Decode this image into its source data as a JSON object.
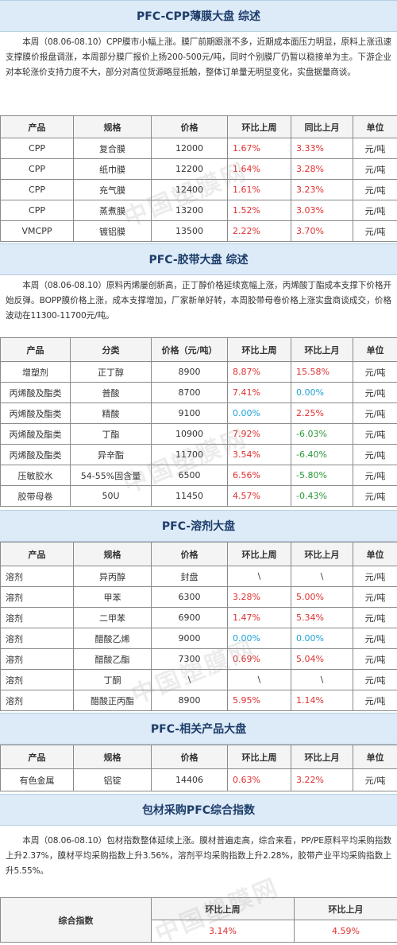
{
  "watermark": "中国塑膜网",
  "cpp": {
    "title": "PFC-CPP薄膜大盘 综述",
    "text": "本周（08.06-08.10）CPP膜市小幅上涨。膜厂前期跟涨不多，近期成本面压力明显，原料上涨迅速支撑膜价报盘调涨，本周部分膜厂报价上扬200-500元/吨，同时个别膜厂仍暂以稳接单为主。下游企业对本轮涨价支持力度不大，部分对高位货源略显抵触，整体订单量无明显变化，实盘据量商谈。",
    "headers": [
      "产品",
      "规格",
      "价格",
      "环比上周",
      "同比上月",
      "单位"
    ],
    "rows": [
      [
        "CPP",
        "复合膜",
        "12000",
        "1.67%",
        "3.33%",
        "元/吨"
      ],
      [
        "CPP",
        "纸巾膜",
        "12200",
        "1.64%",
        "3.28%",
        "元/吨"
      ],
      [
        "CPP",
        "充气膜",
        "12400",
        "1.61%",
        "3.23%",
        "元/吨"
      ],
      [
        "CPP",
        "蒸煮膜",
        "13200",
        "1.52%",
        "3.03%",
        "元/吨"
      ],
      [
        "VMCPP",
        "镀铝膜",
        "13500",
        "2.22%",
        "3.70%",
        "元/吨"
      ]
    ]
  },
  "tape": {
    "title": "PFC-胶带大盘 综述",
    "text": "本周（08.06-08.10）原料丙烯屡创新高，正丁醇价格延续宽幅上涨，丙烯酸丁酯成本支撑下价格开始反弹。BOPP膜价格上涨，成本支撑增加，厂家新单好转，本周胶带母卷价格上涨实盘商谈成交，价格波动在11300-11700元/吨。",
    "headers": [
      "产品",
      "分类",
      "价格（元/吨）",
      "环比上周",
      "环比上月",
      "单位"
    ],
    "rows": [
      [
        "增塑剂",
        "正丁醇",
        "8900",
        "8.87%",
        "15.58%",
        "元/吨"
      ],
      [
        "丙烯酸及酯类",
        "普酸",
        "8700",
        "7.41%",
        "0.00%",
        "元/吨"
      ],
      [
        "丙烯酸及酯类",
        "精酸",
        "9100",
        "0.00%",
        "2.25%",
        "元/吨"
      ],
      [
        "丙烯酸及酯类",
        "丁酯",
        "10900",
        "7.92%",
        "-6.03%",
        "元/吨"
      ],
      [
        "丙烯酸及酯类",
        "异辛酯",
        "11700",
        "3.54%",
        "-6.40%",
        "元/吨"
      ],
      [
        "压敏胶水",
        "54-55%固含量",
        "6500",
        "6.56%",
        "-5.80%",
        "元/吨"
      ],
      [
        "胶带母卷",
        "50U",
        "11450",
        "4.57%",
        "-0.43%",
        "元/吨"
      ]
    ]
  },
  "solvent": {
    "title": "PFC-溶剂大盘",
    "headers": [
      "产品",
      "规格",
      "价格",
      "环比上周",
      "环比上月",
      "单位"
    ],
    "rows": [
      [
        "溶剂",
        "异丙醇",
        "封盘",
        "\\",
        "\\",
        "元/吨"
      ],
      [
        "溶剂",
        "甲苯",
        "6300",
        "3.28%",
        "5.00%",
        "元/吨"
      ],
      [
        "溶剂",
        "二甲苯",
        "6900",
        "1.47%",
        "5.34%",
        "元/吨"
      ],
      [
        "溶剂",
        "醋酸乙烯",
        "9000",
        "0.00%",
        "0.00%",
        "元/吨"
      ],
      [
        "溶剂",
        "醋酸乙酯",
        "7300",
        "0.69%",
        "5.04%",
        "元/吨"
      ],
      [
        "溶剂",
        "丁酮",
        "\\",
        "\\",
        "\\",
        "元/吨"
      ],
      [
        "溶剂",
        "醋酸正丙酯",
        "8900",
        "5.95%",
        "1.14%",
        "元/吨"
      ]
    ]
  },
  "related": {
    "title": "PFC-相关产品大盘",
    "headers": [
      "产品",
      "规格",
      "价格",
      "环比上周",
      "环比上月",
      "单位"
    ],
    "rows": [
      [
        "有色金属",
        "铝锭",
        "14406",
        "0.63%",
        "3.22%",
        "元/吨"
      ]
    ]
  },
  "index": {
    "title": "包材采购PFC综合指数",
    "text": "本周（08.06-08.10）包材指数整体延续上涨。膜材普遍走高，综合来看，PP/PE原料平均采购指数上升2.37%，膜材平均采购指数上升3.56%，溶剂平均采购指数上升2.28%，胶带产业平均采购指数上升5.55%。",
    "label": "综合指数",
    "h_week": "环比上周",
    "h_month": "环比上月",
    "v_week": "3.14%",
    "v_month": "4.59%"
  }
}
